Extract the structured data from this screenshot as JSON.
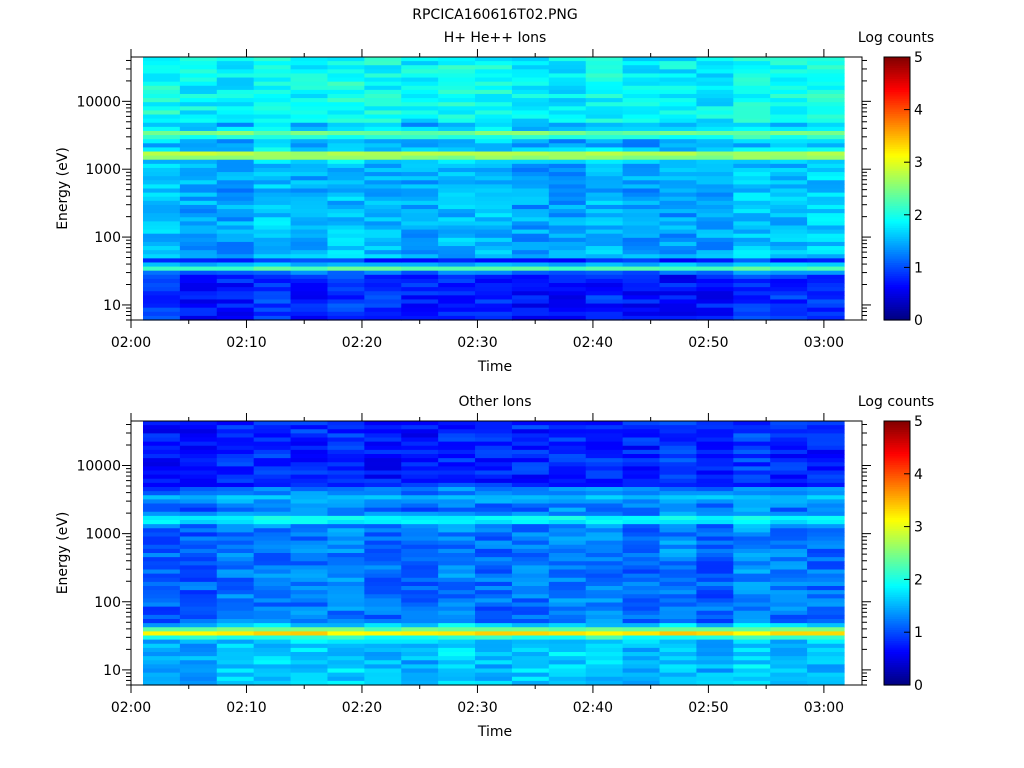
{
  "figure_title": "RPCICA160616T02.PNG",
  "chart_data": [
    {
      "type": "heatmap",
      "title": "H+ He++ Ions",
      "xlabel": "Time",
      "ylabel": "Energy (eV)",
      "x_ticks": [
        "02:00",
        "02:10",
        "02:20",
        "02:30",
        "02:40",
        "02:50",
        "03:00"
      ],
      "y_ticks": [
        "10",
        "100",
        "1000",
        "10000"
      ],
      "y_scale": "log",
      "ylim": [
        6,
        45000
      ],
      "colorbar": {
        "label": "Log counts",
        "range": [
          0,
          5
        ],
        "ticks": [
          "0",
          "1",
          "2",
          "3",
          "4",
          "5"
        ],
        "colormap": "jet"
      },
      "bands": [
        {
          "center_eV": 1600,
          "log_counts": 3.0
        },
        {
          "center_eV": 3300,
          "log_counts": 2.5
        },
        {
          "center_eV": 35,
          "log_counts": 2.3
        }
      ],
      "background_log_counts": {
        "high_energy": 1.9,
        "mid_energy": 1.5,
        "low_energy": 0.8
      }
    },
    {
      "type": "heatmap",
      "title": "Other Ions",
      "xlabel": "Time",
      "ylabel": "Energy (eV)",
      "x_ticks": [
        "02:00",
        "02:10",
        "02:20",
        "02:30",
        "02:40",
        "02:50",
        "03:00"
      ],
      "y_ticks": [
        "10",
        "100",
        "1000",
        "10000"
      ],
      "y_scale": "log",
      "ylim": [
        6,
        45000
      ],
      "colorbar": {
        "label": "Log counts",
        "range": [
          0,
          5
        ],
        "ticks": [
          "0",
          "1",
          "2",
          "3",
          "4",
          "5"
        ],
        "colormap": "jet"
      },
      "bands": [
        {
          "center_eV": 35,
          "log_counts": 3.3
        },
        {
          "center_eV": 1600,
          "log_counts": 2.0
        },
        {
          "center_eV": 3300,
          "log_counts": 1.6
        }
      ],
      "background_log_counts": {
        "high_energy": 0.8,
        "mid_energy": 1.2,
        "low_energy": 1.6
      }
    }
  ]
}
